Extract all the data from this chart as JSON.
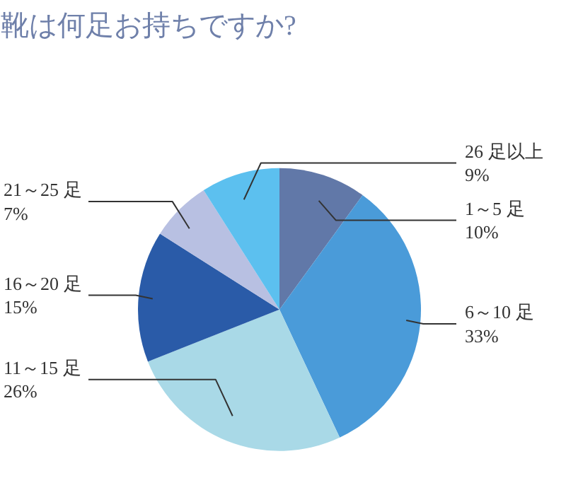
{
  "chart_data": {
    "type": "pie",
    "title": "靴は何足お持ちですか?",
    "categories": [
      "1～5 足",
      "6～10 足",
      "11～15 足",
      "16～20 足",
      "21～25 足",
      "26 足以上"
    ],
    "values": [
      10,
      33,
      26,
      15,
      7,
      9
    ],
    "colors": [
      "#6178a8",
      "#4a9bd9",
      "#a9d9e7",
      "#2a5ba8",
      "#b8c0e2",
      "#5cc0ef"
    ],
    "value_labels": [
      "10%",
      "33%",
      "26%",
      "15%",
      "7%",
      "9%"
    ]
  }
}
